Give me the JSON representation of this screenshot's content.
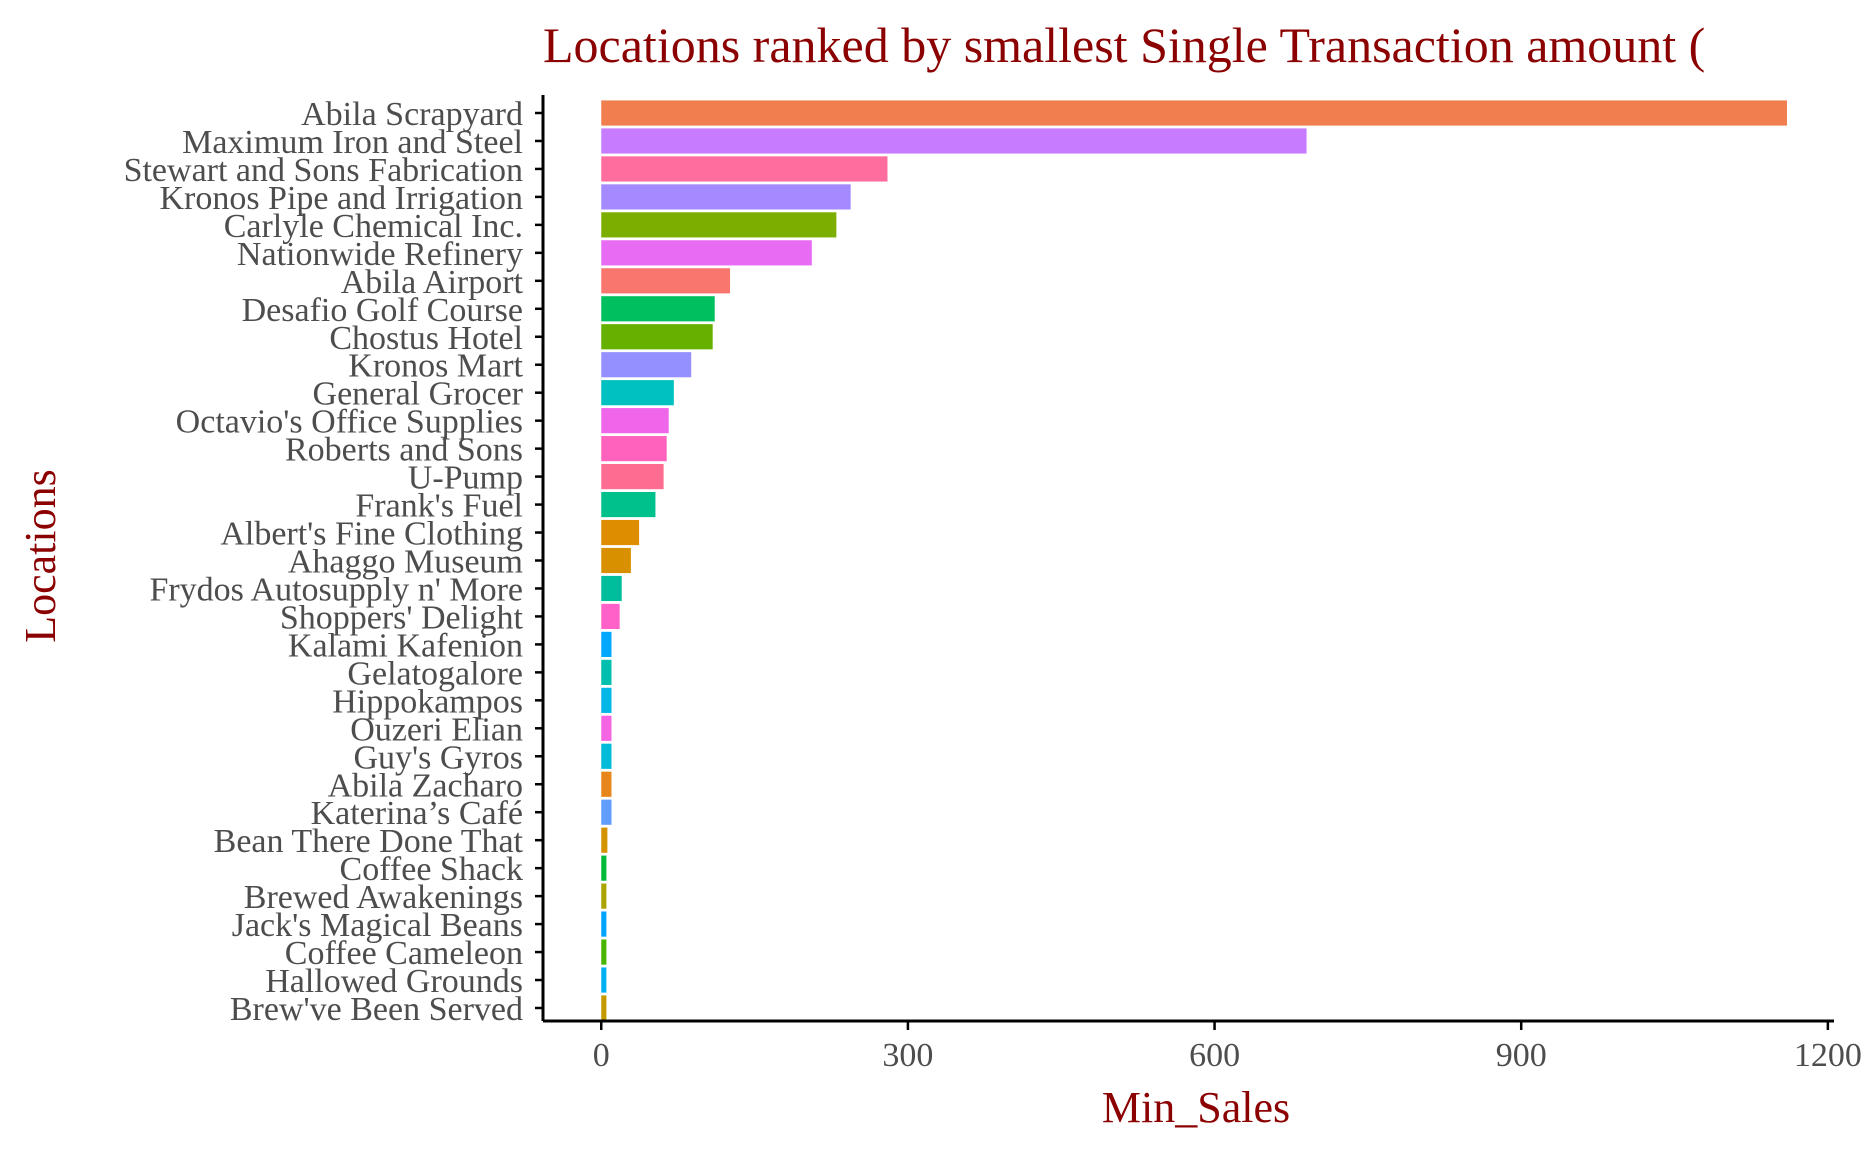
{
  "chart_data": {
    "type": "bar",
    "orientation": "horizontal",
    "title": "Locations ranked by smallest Single Transaction amount (",
    "xlabel": "Min_Sales",
    "ylabel": "Locations",
    "xlim": [
      -57,
      1206
    ],
    "xticks": [
      0,
      300,
      600,
      900,
      1200
    ],
    "grid": false,
    "legend": "none",
    "categories": [
      "Abila Scrapyard",
      "Maximum Iron and Steel",
      "Stewart and Sons Fabrication",
      "Kronos Pipe and Irrigation",
      "Carlyle Chemical Inc.",
      "Nationwide Refinery",
      "Abila Airport",
      "Desafio Golf Course",
      "Chostus Hotel",
      "Kronos Mart",
      "General Grocer",
      "Octavio's Office Supplies",
      "Roberts and Sons",
      "U-Pump",
      "Frank's Fuel",
      "Albert's Fine Clothing",
      "Ahaggo Museum",
      "Frydos Autosupply n' More",
      "Shoppers' Delight",
      "Kalami Kafenion",
      "Gelatogalore",
      "Hippokampos",
      "Ouzeri Elian",
      "Guy's Gyros",
      "Abila Zacharo",
      "Katerina’s Café",
      "Bean There Done That",
      "Coffee Shack",
      "Brewed Awakenings",
      "Jack's Magical Beans",
      "Coffee Cameleon",
      "Hallowed Grounds",
      "Brew've Been Served"
    ],
    "values": [
      1160,
      690,
      280,
      244,
      230,
      206,
      126,
      111,
      109,
      88,
      71,
      66,
      64,
      61,
      53,
      37,
      29,
      20,
      18,
      10,
      10,
      10,
      10,
      10,
      10,
      10,
      6,
      5,
      5,
      5,
      5,
      5,
      5
    ],
    "colors": [
      "#F07E4E",
      "#C77CFF",
      "#FF6C9E",
      "#A58AFF",
      "#7CAE00",
      "#E76BF3",
      "#F8766D",
      "#00BF5F",
      "#66B000",
      "#9590FF",
      "#00C1C1",
      "#F066EA",
      "#FF62BC",
      "#FF6C91",
      "#00C08B",
      "#DE8C00",
      "#D89000",
      "#00BE9C",
      "#FF61C9",
      "#00A9FF",
      "#00BFAE",
      "#00B7E8",
      "#F564E3",
      "#00BCD8",
      "#E7861B",
      "#619CFF",
      "#D39200",
      "#00BA38",
      "#ABA300",
      "#00A5FF",
      "#49B500",
      "#00B2F3",
      "#C49A00"
    ]
  }
}
